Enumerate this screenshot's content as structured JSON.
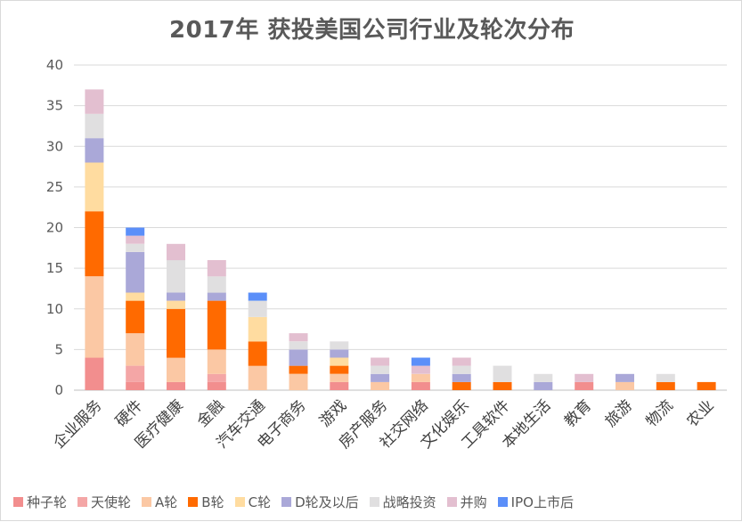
{
  "chart_data": {
    "type": "bar",
    "stacked": true,
    "title": "2017年 获投美国公司行业及轮次分布",
    "xlabel": "",
    "ylabel": "",
    "ylim": [
      0,
      40
    ],
    "yticks": [
      0,
      5,
      10,
      15,
      20,
      25,
      30,
      35,
      40
    ],
    "grid": true,
    "legend_position": "bottom",
    "categories": [
      "企业服务",
      "硬件",
      "医疗健康",
      "金融",
      "汽车交通",
      "电子商务",
      "游戏",
      "房产服务",
      "社交网络",
      "文化娱乐",
      "工具软件",
      "本地生活",
      "教育",
      "旅游",
      "物流",
      "农业"
    ],
    "series": [
      {
        "name": "种子轮",
        "color": "#f28e8e",
        "values": [
          4,
          1,
          1,
          1,
          0,
          0,
          1,
          0,
          1,
          0,
          0,
          0,
          1,
          0,
          0,
          0
        ]
      },
      {
        "name": "天使轮",
        "color": "#f4a6a6",
        "values": [
          0,
          2,
          0,
          1,
          0,
          0,
          0,
          0,
          0,
          0,
          0,
          0,
          0,
          0,
          0,
          0
        ]
      },
      {
        "name": "A轮",
        "color": "#fbc8a4",
        "values": [
          10,
          4,
          3,
          3,
          3,
          2,
          1,
          1,
          1,
          0,
          0,
          0,
          0,
          1,
          0,
          0
        ]
      },
      {
        "name": "B轮",
        "color": "#ff6a00",
        "values": [
          8,
          4,
          6,
          6,
          3,
          1,
          1,
          0,
          0,
          1,
          1,
          0,
          0,
          0,
          1,
          1
        ]
      },
      {
        "name": "C轮",
        "color": "#ffdca0",
        "values": [
          6,
          1,
          1,
          0,
          3,
          0,
          1,
          0,
          0,
          0,
          0,
          0,
          0,
          0,
          0,
          0
        ]
      },
      {
        "name": "D轮及以后",
        "color": "#aaa8d8",
        "values": [
          3,
          5,
          1,
          1,
          0,
          2,
          1,
          1,
          0,
          1,
          0,
          1,
          0,
          1,
          0,
          0
        ]
      },
      {
        "name": "战略投资",
        "color": "#e0dfe0",
        "values": [
          3,
          1,
          4,
          2,
          2,
          1,
          1,
          1,
          0,
          1,
          2,
          1,
          0,
          0,
          1,
          0
        ]
      },
      {
        "name": "并购",
        "color": "#e3bfd0",
        "values": [
          3,
          1,
          2,
          2,
          0,
          1,
          0,
          1,
          1,
          1,
          0,
          0,
          1,
          0,
          0,
          0
        ]
      },
      {
        "name": "IPO上市后",
        "color": "#5b8ff9",
        "values": [
          0,
          1,
          0,
          0,
          1,
          0,
          0,
          0,
          1,
          0,
          0,
          0,
          0,
          0,
          0,
          0
        ]
      }
    ]
  }
}
